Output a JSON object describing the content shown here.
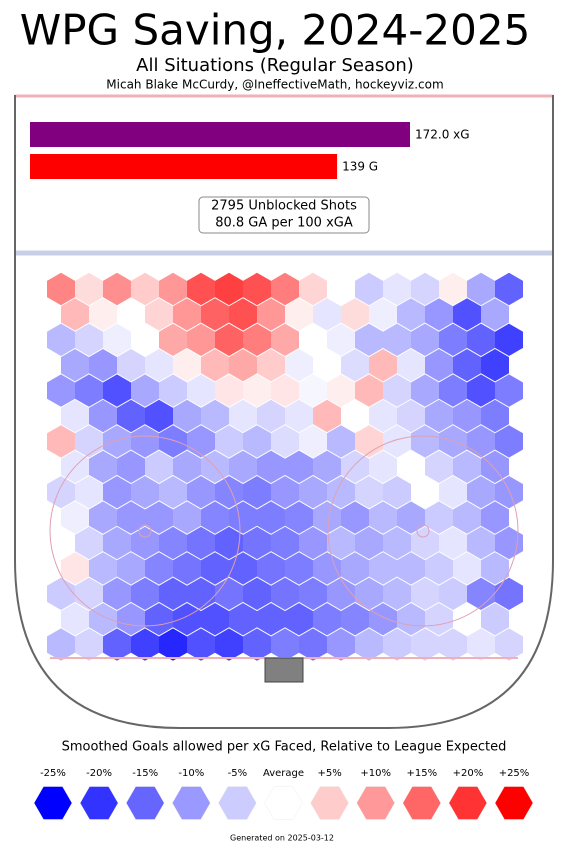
{
  "chart_data": {
    "type": "hexmap",
    "title": "WPG Saving, 2024-2025",
    "subtitle": "All Situations (Regular Season)",
    "credit": "Micah Blake McCurdy, @IneffectiveMath, hockeyviz.com",
    "bars": [
      {
        "value": 172.0,
        "label": "172.0 xG",
        "color": "#800080"
      },
      {
        "value": 139,
        "label": "139 G",
        "color": "#ff0000"
      }
    ],
    "summary": [
      "2795 Unblocked Shots",
      "80.8 GA per 100 xGA"
    ],
    "colors": {
      "low": "#0000ff",
      "mid": "#ffffff",
      "high": "#ff0000"
    },
    "hex_values": [
      [
        14,
        4,
        13,
        6,
        12,
        20,
        22,
        20,
        15,
        5,
        0,
        -6,
        -3,
        -5,
        2,
        -10,
        -18
      ],
      [
        8,
        2,
        0,
        5,
        12,
        18,
        20,
        12,
        2,
        -3,
        4,
        -2,
        -8,
        -12,
        -20,
        -10
      ],
      [
        -8,
        -5,
        -2,
        0,
        10,
        12,
        18,
        15,
        10,
        0,
        -2,
        -8,
        -8,
        -10,
        -15,
        -18,
        -22
      ],
      [
        -10,
        -12,
        -5,
        -3,
        2,
        8,
        10,
        6,
        -2,
        0,
        -4,
        8,
        -3,
        -12,
        -18,
        -22
      ],
      [
        -12,
        -15,
        -20,
        -10,
        -6,
        -3,
        3,
        2,
        3,
        -1,
        2,
        8,
        -5,
        -10,
        -15,
        -20,
        -15
      ],
      [
        -3,
        -12,
        -18,
        -20,
        -10,
        -8,
        -3,
        -5,
        -3,
        8,
        0,
        -3,
        -5,
        -10,
        -12,
        -15
      ],
      [
        8,
        -5,
        -10,
        -12,
        -15,
        -12,
        -6,
        -8,
        -4,
        -2,
        -8,
        5,
        -3,
        -8,
        -10,
        -12,
        -15
      ],
      [
        -3,
        -10,
        -12,
        -6,
        -10,
        -8,
        -10,
        -12,
        -12,
        -10,
        -5,
        -3,
        0,
        -5,
        -8,
        -12
      ],
      [
        -5,
        -3,
        -12,
        -10,
        -8,
        -12,
        -14,
        -15,
        -12,
        -10,
        -8,
        -5,
        -6,
        0,
        -3,
        -10,
        -12
      ],
      [
        -2,
        -10,
        -12,
        -12,
        -10,
        -14,
        -15,
        -15,
        -14,
        -10,
        -12,
        -8,
        -10,
        -6,
        -8,
        -12
      ],
      [
        0,
        -5,
        -10,
        -12,
        -14,
        -16,
        -18,
        -16,
        -15,
        -12,
        -8,
        -10,
        -8,
        -5,
        -3,
        -8,
        -12
      ],
      [
        3,
        -8,
        -10,
        -14,
        -16,
        -18,
        -18,
        -16,
        -15,
        -12,
        -10,
        -8,
        -8,
        -6,
        -3,
        -8
      ],
      [
        -6,
        -5,
        -12,
        -15,
        -18,
        -18,
        -16,
        -18,
        -16,
        -15,
        -12,
        -10,
        -8,
        -5,
        -6,
        -14,
        -16
      ],
      [
        -3,
        -8,
        -12,
        -18,
        -20,
        -20,
        -18,
        -18,
        -18,
        -15,
        -14,
        -12,
        -8,
        -5,
        0,
        -6
      ],
      [
        -8,
        -5,
        -18,
        -22,
        -25,
        -20,
        -22,
        -18,
        -15,
        -16,
        -12,
        -8,
        -6,
        -5,
        -5,
        -3,
        -5
      ]
    ],
    "legend": {
      "title": "Smoothed Goals allowed per xG Faced, Relative to League Expected",
      "items": [
        {
          "value": -25,
          "label": "-25%"
        },
        {
          "value": -20,
          "label": "-20%"
        },
        {
          "value": -15,
          "label": "-15%"
        },
        {
          "value": -10,
          "label": "-10%"
        },
        {
          "value": -5,
          "label": "-5%"
        },
        {
          "value": 0,
          "label": "Average"
        },
        {
          "value": 5,
          "label": "+5%"
        },
        {
          "value": 10,
          "label": "+10%"
        },
        {
          "value": 15,
          "label": "+15%"
        },
        {
          "value": 20,
          "label": "+20%"
        },
        {
          "value": 25,
          "label": "+25%"
        }
      ]
    },
    "footer": "Generated on 2025-03-12"
  }
}
